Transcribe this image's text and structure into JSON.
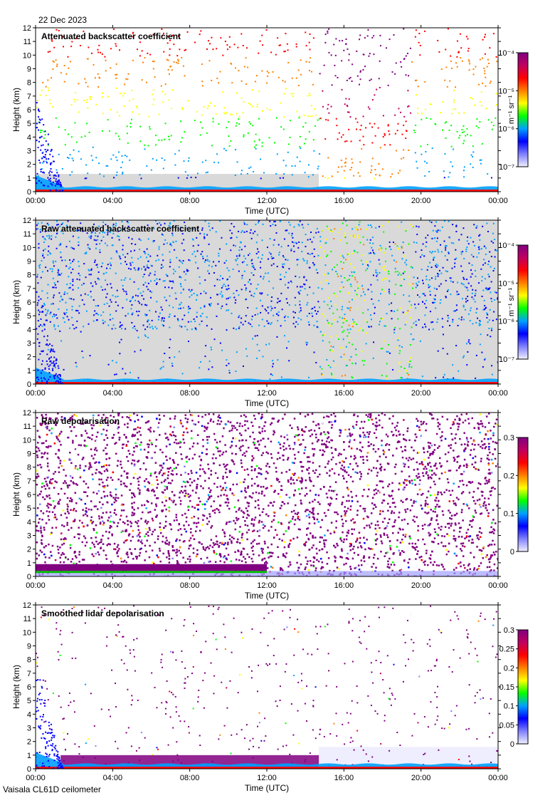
{
  "header": {
    "date": "22 Dec 2023"
  },
  "footer": {
    "instrument": "Vaisala CL61D ceilometer"
  },
  "colors": {
    "background": "#ffffff",
    "no_signal": "#d9d9d9",
    "scale": [
      "#f0f0ff",
      "#8080ff",
      "#0000ff",
      "#00a0ff",
      "#00ff00",
      "#ffff00",
      "#ff8000",
      "#ff0000",
      "#c00060",
      "#800080"
    ]
  },
  "chart_data": [
    {
      "type": "heatmap",
      "title": "Attenuated backscatter coefficient",
      "xlabel": "Time (UTC)",
      "ylabel": "Height (km)",
      "xticks": [
        "00:00",
        "04:00",
        "08:00",
        "12:00",
        "16:00",
        "20:00",
        "00:00"
      ],
      "yticks": [
        "0",
        "1",
        "2",
        "3",
        "4",
        "5",
        "6",
        "7",
        "8",
        "9",
        "10",
        "11",
        "12"
      ],
      "ylim": [
        0,
        12
      ],
      "xlim_hours": [
        0,
        24
      ],
      "colorbar": {
        "scale": "log",
        "ticks": [
          "10⁻⁴",
          "10⁻⁵",
          "10⁻⁶",
          "10⁻⁷"
        ],
        "label": "m⁻¹ sr⁻¹",
        "range": [
          1e-07,
          0.0001
        ]
      }
    },
    {
      "type": "heatmap",
      "title": "Raw attenuated backscatter coefficient",
      "xlabel": "Time (UTC)",
      "ylabel": "Height (km)",
      "xticks": [
        "00:00",
        "04:00",
        "08:00",
        "12:00",
        "16:00",
        "20:00",
        "00:00"
      ],
      "yticks": [
        "0",
        "1",
        "2",
        "3",
        "4",
        "5",
        "6",
        "7",
        "8",
        "9",
        "10",
        "11",
        "12"
      ],
      "ylim": [
        0,
        12
      ],
      "xlim_hours": [
        0,
        24
      ],
      "colorbar": {
        "scale": "log",
        "ticks": [
          "10⁻⁴",
          "10⁻⁵",
          "10⁻⁶",
          "10⁻⁷"
        ],
        "label": "m⁻¹ sr⁻¹",
        "range": [
          1e-07,
          0.0001
        ]
      }
    },
    {
      "type": "heatmap",
      "title": "Raw depolarisation",
      "xlabel": "Time (UTC)",
      "ylabel": "Height (km)",
      "xticks": [
        "00:00",
        "04:00",
        "08:00",
        "12:00",
        "16:00",
        "20:00",
        "00:00"
      ],
      "yticks": [
        "0",
        "1",
        "2",
        "3",
        "4",
        "5",
        "6",
        "7",
        "8",
        "9",
        "10",
        "11",
        "12"
      ],
      "ylim": [
        0,
        12
      ],
      "xlim_hours": [
        0,
        24
      ],
      "colorbar": {
        "scale": "linear",
        "ticks": [
          "0.3",
          "0.2",
          "0.1",
          "0"
        ],
        "label": "",
        "range": [
          0,
          0.3
        ]
      }
    },
    {
      "type": "heatmap",
      "title": "Smoothed lidar depolarisation",
      "xlabel": "Time (UTC)",
      "ylabel": "Height (km)",
      "xticks": [
        "00:00",
        "04:00",
        "08:00",
        "12:00",
        "16:00",
        "20:00",
        "00:00"
      ],
      "yticks": [
        "0",
        "1",
        "2",
        "3",
        "4",
        "5",
        "6",
        "7",
        "8",
        "9",
        "10",
        "11",
        "12"
      ],
      "ylim": [
        0,
        12
      ],
      "xlim_hours": [
        0,
        24
      ],
      "colorbar": {
        "scale": "linear",
        "ticks": [
          "0.3",
          "0.25",
          "0.2",
          "0.15",
          "0.1",
          "0.05",
          "0"
        ],
        "label": "",
        "range": [
          0,
          0.3
        ]
      }
    }
  ]
}
